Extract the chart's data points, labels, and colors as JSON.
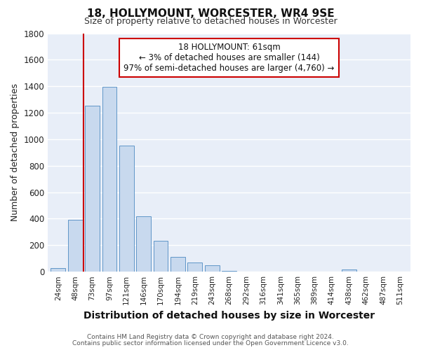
{
  "title": "18, HOLLYMOUNT, WORCESTER, WR4 9SE",
  "subtitle": "Size of property relative to detached houses in Worcester",
  "xlabel": "Distribution of detached houses by size in Worcester",
  "ylabel": "Number of detached properties",
  "bin_labels": [
    "24sqm",
    "48sqm",
    "73sqm",
    "97sqm",
    "121sqm",
    "146sqm",
    "170sqm",
    "194sqm",
    "219sqm",
    "243sqm",
    "268sqm",
    "292sqm",
    "316sqm",
    "341sqm",
    "365sqm",
    "389sqm",
    "414sqm",
    "438sqm",
    "462sqm",
    "487sqm",
    "511sqm"
  ],
  "bar_values": [
    25,
    390,
    1255,
    1395,
    950,
    420,
    235,
    110,
    70,
    50,
    5,
    0,
    0,
    0,
    0,
    0,
    0,
    15,
    0,
    0,
    0
  ],
  "bar_color": "#c8d9ee",
  "bar_edge_color": "#6096c8",
  "marker_line_color": "#cc0000",
  "annotation_title": "18 HOLLYMOUNT: 61sqm",
  "annotation_line1": "← 3% of detached houses are smaller (144)",
  "annotation_line2": "97% of semi-detached houses are larger (4,760) →",
  "annotation_box_color": "white",
  "annotation_box_edge_color": "#cc0000",
  "ylim": [
    0,
    1800
  ],
  "yticks": [
    0,
    200,
    400,
    600,
    800,
    1000,
    1200,
    1400,
    1600,
    1800
  ],
  "footer1": "Contains HM Land Registry data © Crown copyright and database right 2024.",
  "footer2": "Contains public sector information licensed under the Open Government Licence v3.0.",
  "plot_bg_color": "#e8eef8",
  "fig_bg_color": "#ffffff",
  "grid_color": "#ffffff"
}
